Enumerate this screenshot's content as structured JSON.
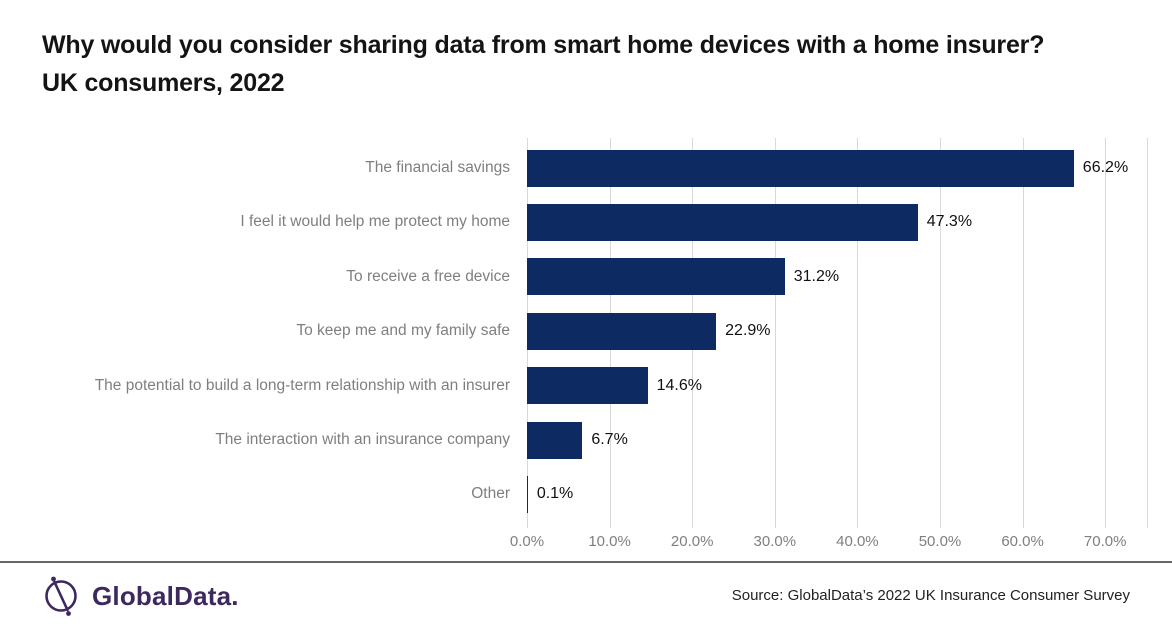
{
  "title": "Why would you consider sharing data from smart home devices with a home insurer? UK consumers, 2022",
  "chart_data": {
    "type": "bar",
    "orientation": "horizontal",
    "title": "Why would you consider sharing data from smart home devices with a home insurer? UK consumers, 2022",
    "categories": [
      "The financial savings",
      "I feel it would help me protect my home",
      "To receive a free device",
      "To keep me and my family safe",
      "The potential to build a long-term relationship with an insurer",
      "The interaction with an insurance company",
      "Other"
    ],
    "values": [
      66.2,
      47.3,
      31.2,
      22.9,
      14.6,
      6.7,
      0.1
    ],
    "value_labels": [
      "66.2%",
      "47.3%",
      "31.2%",
      "22.9%",
      "14.6%",
      "6.7%",
      "0.1%"
    ],
    "x_tick_labels": [
      "0.0%",
      "10.0%",
      "20.0%",
      "30.0%",
      "40.0%",
      "50.0%",
      "60.0%",
      "70.0%"
    ],
    "x_tick_values": [
      0,
      10,
      20,
      30,
      40,
      50,
      60,
      70
    ],
    "xlim": [
      0,
      75
    ],
    "xlabel": "",
    "ylabel": "",
    "grid": "vertical major gridlines every 10%",
    "legend": "none",
    "bar_color": "#0d2a63",
    "gridline_color": "#d9d9d9",
    "category_label_color": "#7f7f7f",
    "tick_label_color": "#7f7f7f",
    "value_label_color": "#111111"
  },
  "footer": {
    "logo_text": "GlobalData.",
    "source": "Source: GlobalData’s 2022 UK Insurance Consumer Survey"
  },
  "colors": {
    "accent_navy": "#0d2a63",
    "brand_purple": "#3d2860",
    "divider_gray": "#666666"
  }
}
